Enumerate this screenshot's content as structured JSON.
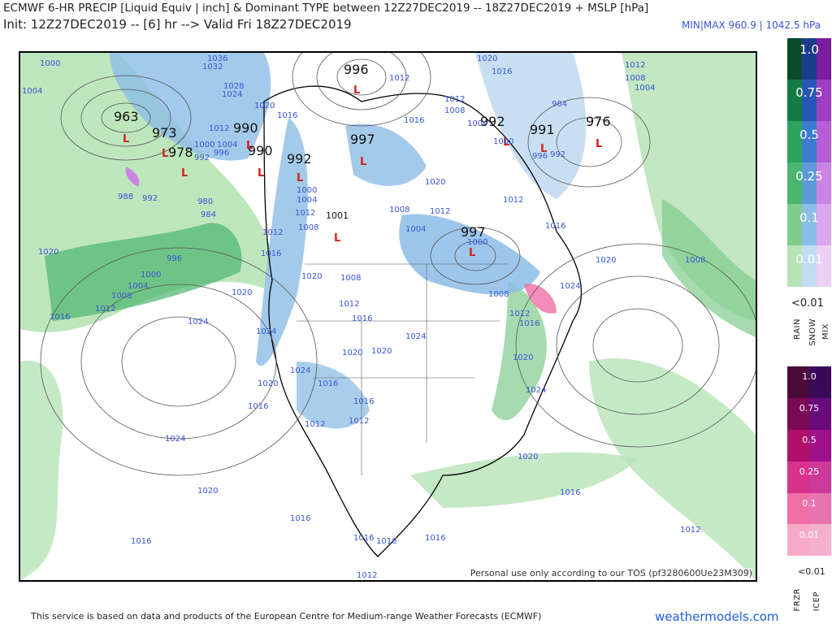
{
  "header": {
    "line1": "ECMWF 6-HR PRECIP [Liquid Equiv | inch] & Dominant TYPE between 12Z27DEC2019 -- 18Z27DEC2019 + MSLP [hPa]",
    "line2": "Init: 12Z27DEC2019 -- [6] hr --> Valid Fri 18Z27DEC2019",
    "minmax": "MIN|MAX 960.9 | 1042.5 hPa"
  },
  "map": {
    "watermark": "Personal use only according to our TOS (pf3280600Ue23M309)",
    "pressure_centers": [
      {
        "value": "963",
        "type": "L"
      },
      {
        "value": "973",
        "type": "L"
      },
      {
        "value": "978",
        "type": "L"
      },
      {
        "value": "990",
        "type": "L"
      },
      {
        "value": "990",
        "type": "L"
      },
      {
        "value": "992",
        "type": "L"
      },
      {
        "value": "996",
        "type": "L"
      },
      {
        "value": "997",
        "type": "L"
      },
      {
        "value": "997",
        "type": "L"
      },
      {
        "value": "992",
        "type": "L"
      },
      {
        "value": "991",
        "type": "L"
      },
      {
        "value": "976",
        "type": "L"
      },
      {
        "value": "1001",
        "type": "L"
      }
    ],
    "isobar_labels": [
      "1000",
      "1004",
      "1036",
      "1032",
      "1028",
      "1024",
      "1020",
      "1016",
      "1012",
      "1008",
      "1004",
      "1000",
      "996",
      "992",
      "988",
      "984",
      "980",
      "1020",
      "1016",
      "1012",
      "1024",
      "1020",
      "1016",
      "1024",
      "1020",
      "1016",
      "1012",
      "1008",
      "1004",
      "1000",
      "1012",
      "1008",
      "1004",
      "1000",
      "996",
      "984",
      "992",
      "1008",
      "1004",
      "1000",
      "1020",
      "1016",
      "1012",
      "1020",
      "1024",
      "1008",
      "1020",
      "1024",
      "1016",
      "1020",
      "1016",
      "1012",
      "1016",
      "1012",
      "1016",
      "1012",
      "1016",
      "1008"
    ]
  },
  "legend_top": {
    "column_labels": [
      "RAIN",
      "SNOW",
      "MIX"
    ],
    "levels": [
      "1.0",
      "0.75",
      "0.5",
      "0.25",
      "0.1",
      "0.01"
    ],
    "below": "<0.01",
    "colors": {
      "rain": [
        "#0b4a2b",
        "#157a43",
        "#2ca25f",
        "#4cb56f",
        "#7fcc8b",
        "#b7e3b6"
      ],
      "snow": [
        "#1d3d8c",
        "#2858b5",
        "#3c7bd0",
        "#5e9ad8",
        "#8cbde6",
        "#c2dcf2"
      ],
      "mix": [
        "#7a1ea0",
        "#9b3ec2",
        "#b55ed6",
        "#c984e4",
        "#dba8ee",
        "#ecd0f6"
      ]
    }
  },
  "legend_bottom": {
    "column_labels": [
      "FRZR",
      "ICEP"
    ],
    "levels": [
      "1.0",
      "0.75",
      "0.5",
      "0.25",
      "0.1",
      "0.01"
    ],
    "below": "<0.01",
    "colors": {
      "frzr": [
        "#4a0a3a",
        "#7a0a55",
        "#b0106a",
        "#d9328a",
        "#ef6fa6",
        "#f7a9c8"
      ],
      "icep": [
        "#3a0a5a",
        "#6a0a7a",
        "#a0108a",
        "#cc3a9a",
        "#e874b0",
        "#f4b0cc"
      ]
    }
  },
  "footer": {
    "left": "This service is based on data and products of the European Centre for Medium-range Weather Forecasts (ECMWF)",
    "site": "weathermodels.com"
  }
}
